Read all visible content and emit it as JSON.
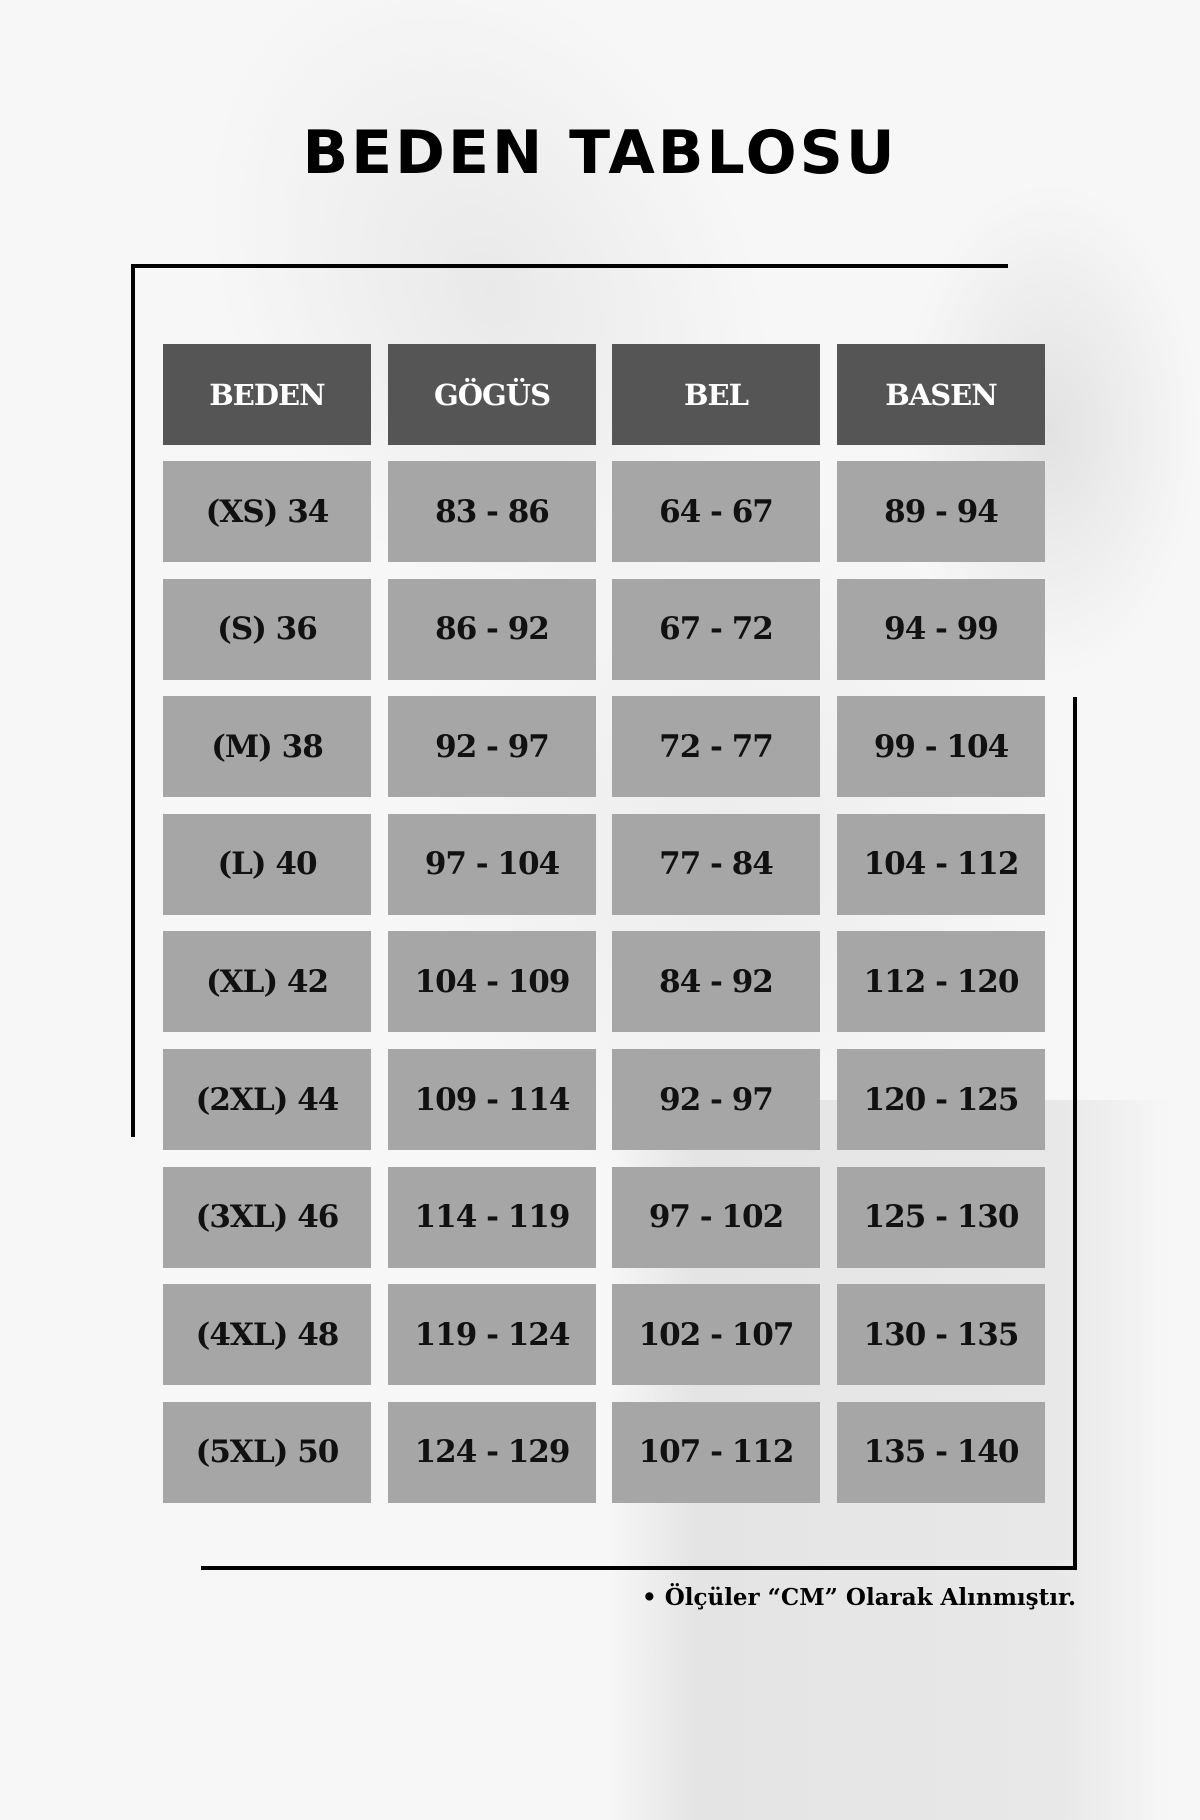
{
  "title": "BEDEN TABLOSU",
  "colors": {
    "header_bg": "#555555",
    "cell_bg": "#a6a6a6",
    "frame": "#000000"
  },
  "table": {
    "headers": [
      "BEDEN",
      "GÖGÜS",
      "BEL",
      "BASEN"
    ],
    "rows": [
      [
        "(XS) 34",
        "83 - 86",
        "64 - 67",
        "89 - 94"
      ],
      [
        "(S) 36",
        "86 - 92",
        "67 - 72",
        "94 - 99"
      ],
      [
        "(M) 38",
        "92 - 97",
        "72 - 77",
        "99 - 104"
      ],
      [
        "(L) 40",
        "97 - 104",
        "77 - 84",
        "104 - 112"
      ],
      [
        "(XL) 42",
        "104 - 109",
        "84 - 92",
        "112 - 120"
      ],
      [
        "(2XL) 44",
        "109 - 114",
        "92 - 97",
        "120 - 125"
      ],
      [
        "(3XL) 46",
        "114 - 119",
        "97 - 102",
        "125 - 130"
      ],
      [
        "(4XL) 48",
        "119 - 124",
        "102 - 107",
        "130 - 135"
      ],
      [
        "(5XL) 50",
        "124 - 129",
        "107 - 112",
        "135 - 140"
      ]
    ]
  },
  "footnote": "• Ölçüler “CM” Olarak Alınmıştır."
}
